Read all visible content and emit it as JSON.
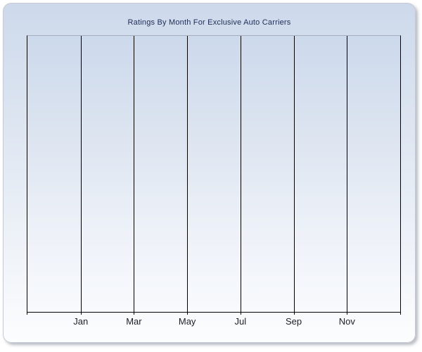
{
  "panel": {
    "border_color": "#c6cad4",
    "background_gradient_top": "#cdd9eb",
    "background_gradient_bottom": "#fcfdfe",
    "shadow_color": "#7d838f"
  },
  "chart_data": {
    "type": "line",
    "title": "Ratings By Month For Exclusive Auto Carriers",
    "title_color": "#1e2c55",
    "xlabel": "",
    "ylabel": "",
    "x_tick_labels": [
      "Jan",
      "Mar",
      "May",
      "Jul",
      "Sep",
      "Nov"
    ],
    "x_axis_span_months": 14,
    "gridlines": "vertical only, one per labeled month (every 2 months)",
    "gridline_color": "#000000",
    "axis_color": "#000000",
    "plot_top_border_color": "#a6aebc",
    "plot_bg_gradient_top": "#ccd9ec",
    "plot_bg_gradient_bottom": "#f8fafd",
    "series": [],
    "values": [],
    "notes": "Plot area is empty - no data points, bars, lines, legend, or y-axis tick labels are rendered"
  }
}
